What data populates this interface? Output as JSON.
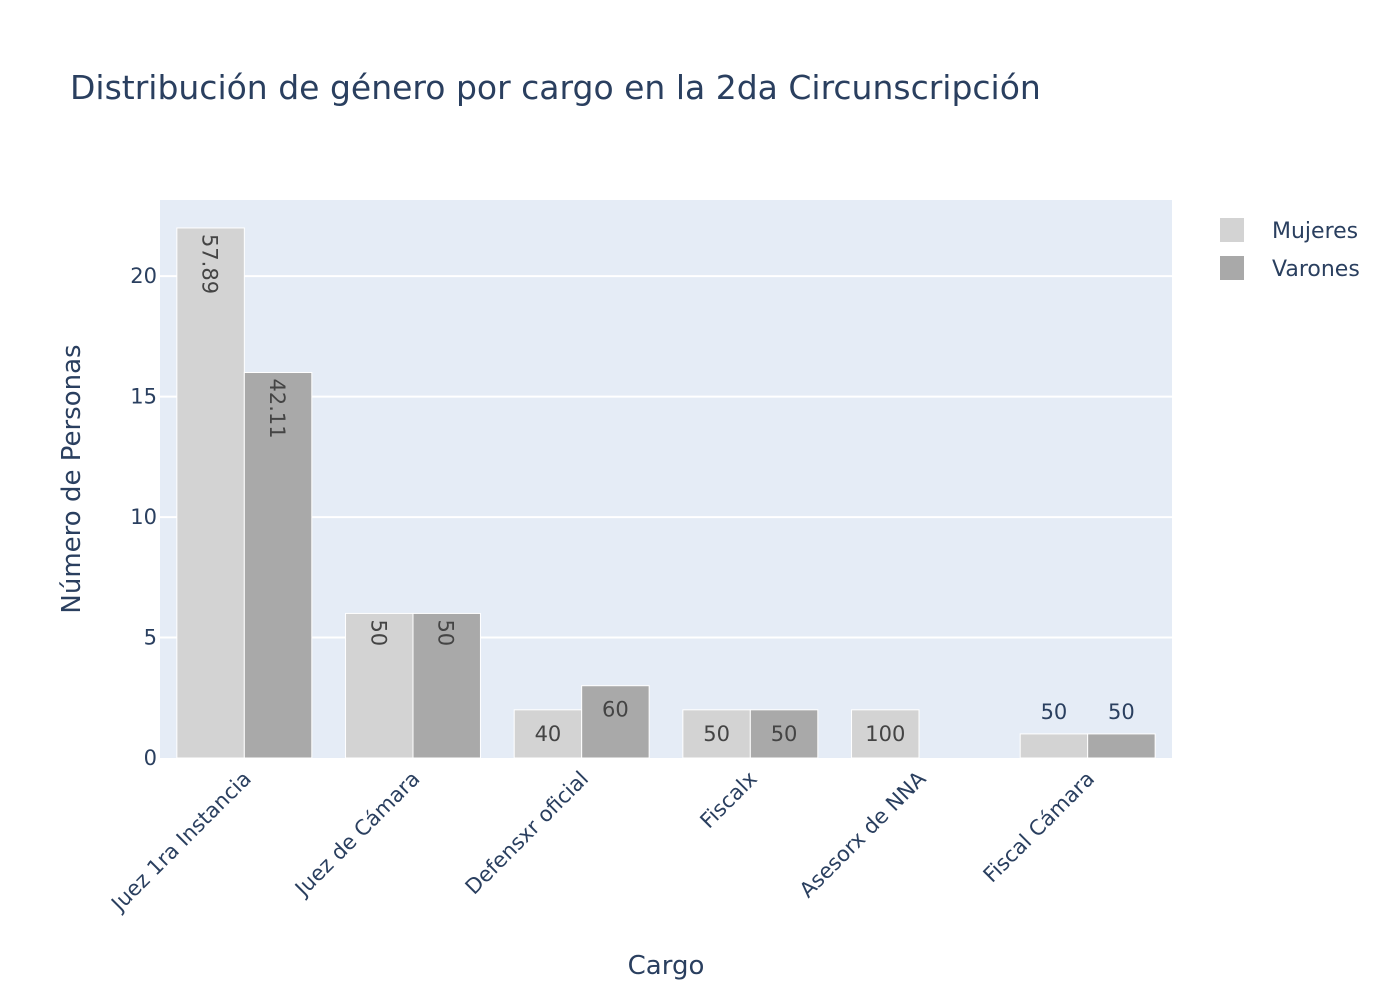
{
  "chart_data": {
    "type": "bar",
    "title": "Distribución de género por cargo en la 2da Circunscripción",
    "xlabel": "Cargo",
    "ylabel": "Número de Personas",
    "categories": [
      "Juez 1ra Instancia",
      "Juez de Cámara",
      "Defensxr oficial",
      "Fiscalx",
      "Asesorx de NNA",
      "Fiscal Cámara"
    ],
    "series": [
      {
        "name": "Mujeres",
        "color": "#d3d3d3",
        "values": [
          22,
          6,
          2,
          2,
          2,
          1
        ],
        "labels": [
          "57.89",
          "50",
          "40",
          "50",
          "100",
          "50"
        ]
      },
      {
        "name": "Varones",
        "color": "#a9a9a9",
        "values": [
          16,
          6,
          3,
          2,
          0,
          1
        ],
        "labels": [
          "42.11",
          "50",
          "60",
          "50",
          "",
          "50"
        ]
      }
    ],
    "ylim": [
      0,
      23.16
    ],
    "yticks": [
      0,
      5,
      10,
      15,
      20
    ],
    "grid": true,
    "legend_position": "top-right",
    "plot_background": "#e5ecf6"
  }
}
